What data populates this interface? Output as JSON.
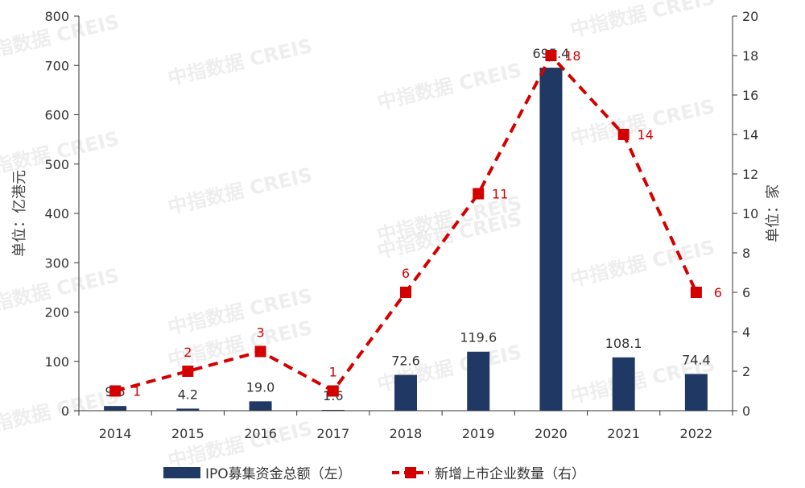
{
  "chart_data": {
    "type": "bar",
    "categories": [
      "2014",
      "2015",
      "2016",
      "2017",
      "2018",
      "2019",
      "2020",
      "2021",
      "2022"
    ],
    "series": [
      {
        "name": "IPO募集资金总额（左）",
        "kind": "bar",
        "axis": "left",
        "color": "#1f3864",
        "values": [
          9.5,
          4.2,
          19.0,
          1.6,
          72.6,
          119.6,
          695.4,
          108.1,
          74.4
        ],
        "labels": [
          "9.5",
          "4.2",
          "19.0",
          "1.6",
          "72.6",
          "119.6",
          "695.4",
          "108.1",
          "74.4"
        ]
      },
      {
        "name": "新增上市企业数量（右）",
        "kind": "line",
        "axis": "right",
        "color": "#d40000",
        "line_style": "dashed",
        "marker": "square",
        "values": [
          1,
          2,
          3,
          1,
          6,
          11,
          18,
          14,
          6
        ],
        "labels": [
          "1",
          "2",
          "3",
          "1",
          "6",
          "11",
          "18",
          "14",
          "6"
        ]
      }
    ],
    "ylabel": "单位：亿港元",
    "ylabel_right": "单位：家",
    "ylim": [
      0,
      800
    ],
    "yticks": [
      "0",
      "100",
      "200",
      "300",
      "400",
      "500",
      "600",
      "700",
      "800"
    ],
    "ylim_right": [
      0,
      20
    ],
    "yticks_right": [
      "0",
      "2",
      "4",
      "6",
      "8",
      "10",
      "12",
      "14",
      "16",
      "18",
      "20"
    ],
    "grid": false,
    "legend_position": "bottom"
  },
  "watermark": "中指数据 CREIS"
}
